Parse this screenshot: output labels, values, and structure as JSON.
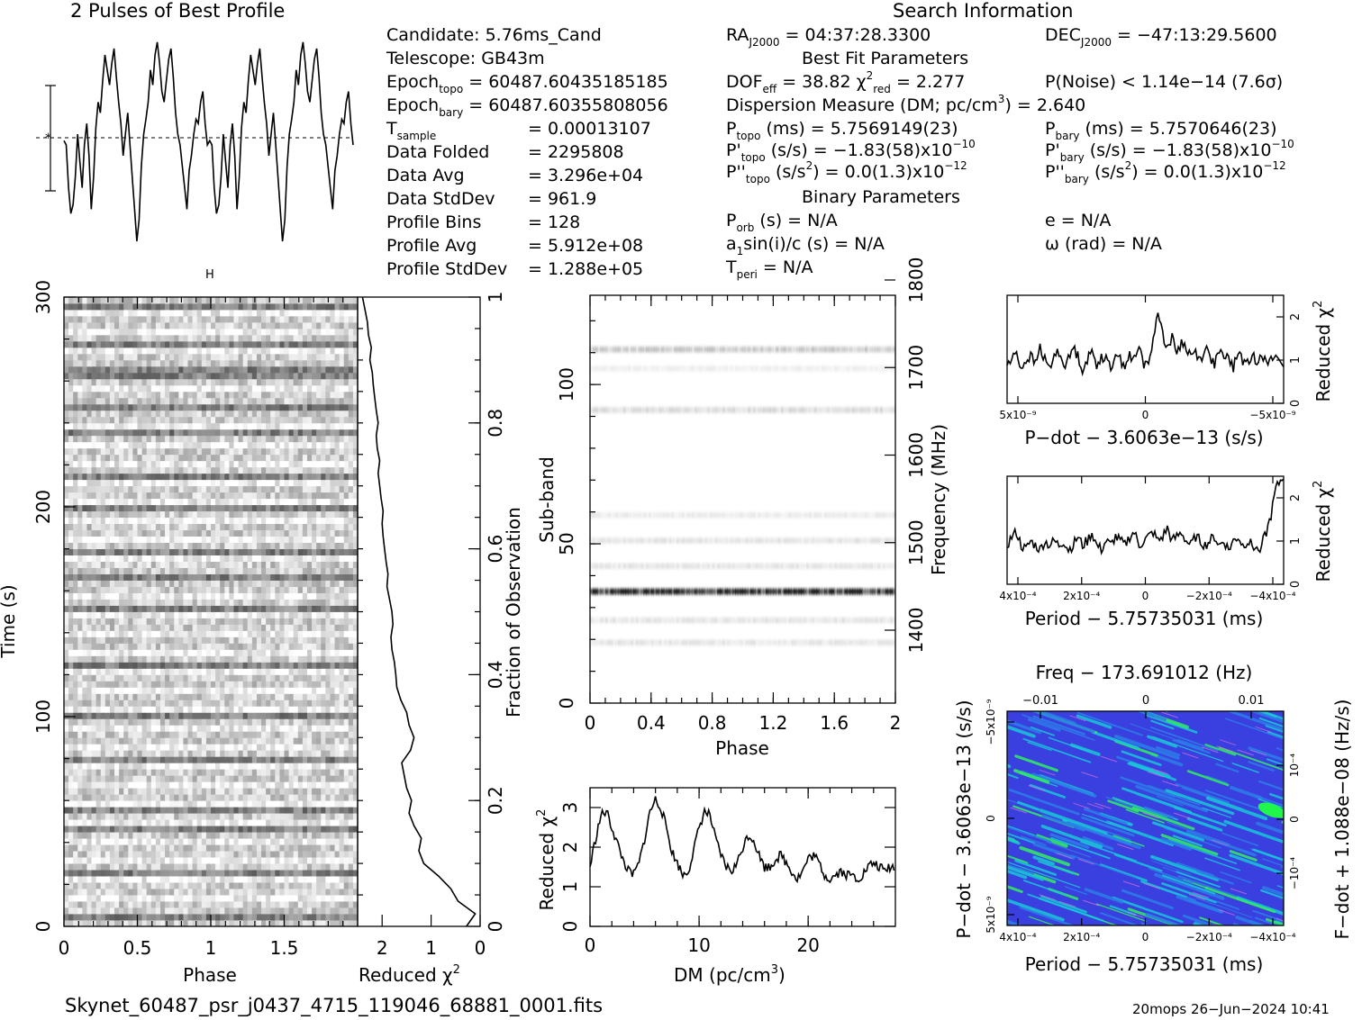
{
  "titles": {
    "profile": "2 Pulses of Best Profile",
    "search": "Search Information"
  },
  "info_left": [
    {
      "label": "Candidate:  5.76ms_Cand",
      "sub": "",
      "value": ""
    },
    {
      "label": "Telescope:  GB43m",
      "sub": "",
      "value": ""
    },
    {
      "label": "Epoch",
      "sub": "topo",
      "value": " = 60487.60435185185"
    },
    {
      "label": "Epoch",
      "sub": "bary",
      "value": " = 60487.60355808056"
    },
    {
      "label": "T",
      "sub": "sample",
      "value": "=  0.00013107"
    },
    {
      "label": "Data Folded",
      "sub": "",
      "value": "=  2295808"
    },
    {
      "label": "Data Avg",
      "sub": "",
      "value": "=  3.296e+04"
    },
    {
      "label": "Data StdDev",
      "sub": "",
      "value": "=  961.9"
    },
    {
      "label": "Profile Bins",
      "sub": "",
      "value": "=  128"
    },
    {
      "label": "Profile Avg",
      "sub": "",
      "value": "=  5.912e+08"
    },
    {
      "label": "Profile StdDev",
      "sub": "",
      "value": "=  1.288e+05"
    }
  ],
  "info_mid": {
    "ra": "04:37:28.3300",
    "dec": "−47:13:29.5600",
    "best_fit_title": "Best Fit Parameters",
    "dof": "38.82",
    "chi2_red": "2.277",
    "p_noise": "P(Noise) < 1.14e−14  (7.6σ)",
    "dm_line": "Dispersion Measure (DM; pc/cm",
    "dm_value": ") = 2.640",
    "p_topo": "5.7569149(23)",
    "p_bary": "5.7570646(23)",
    "pd_topo": "−1.83(58)x10",
    "pd_topo_exp": "−10",
    "pd_bary": "−1.83(58)x10",
    "pd_bary_exp": "−10",
    "pdd_topo": "0.0(1.3)x10",
    "pdd_topo_exp": "−12",
    "pdd_bary": "0.0(1.3)x10",
    "pdd_bary_exp": "−12",
    "binary_title": "Binary Parameters",
    "p_orb": "N/A",
    "a1sini": "N/A",
    "t_peri": "N/A",
    "e": "N/A",
    "omega": "N/A"
  },
  "footer": {
    "filename": "Skynet_60487_psr_j0437_4715_119046_68881_0001.fits",
    "stamp": "20mops 26−Jun−2024 10:41"
  },
  "chart_data": [
    {
      "type": "line",
      "name": "profile",
      "title": "2 Pulses of Best Profile",
      "x": "phase 0-2",
      "values": [
        0.52,
        0.5,
        0.3,
        0.18,
        0.22,
        0.35,
        0.55,
        0.42,
        0.3,
        0.5,
        0.6,
        0.45,
        0.2,
        0.35,
        0.58,
        0.7,
        0.65,
        0.8,
        0.92,
        0.85,
        0.78,
        0.88,
        0.95,
        0.82,
        0.7,
        0.6,
        0.45,
        0.55,
        0.65,
        0.5,
        0.35,
        0.2,
        0.05,
        0.15,
        0.4,
        0.55,
        0.62,
        0.7,
        0.85,
        0.78,
        0.92,
        0.98,
        0.88,
        0.75,
        0.7,
        0.8,
        0.9,
        0.95,
        0.82,
        0.65,
        0.55,
        0.5,
        0.4,
        0.3,
        0.2,
        0.38,
        0.45,
        0.55,
        0.62,
        0.6,
        0.7,
        0.75,
        0.6,
        0.5,
        0.52,
        0.5,
        0.3,
        0.18,
        0.22,
        0.35,
        0.55,
        0.42,
        0.3,
        0.5,
        0.6,
        0.45,
        0.2,
        0.35,
        0.58,
        0.7,
        0.65,
        0.8,
        0.92,
        0.85,
        0.78,
        0.88,
        0.95,
        0.82,
        0.7,
        0.6,
        0.45,
        0.55,
        0.65,
        0.5,
        0.35,
        0.2,
        0.05,
        0.15,
        0.4,
        0.55,
        0.62,
        0.7,
        0.85,
        0.78,
        0.92,
        0.98,
        0.88,
        0.75,
        0.7,
        0.8,
        0.9,
        0.95,
        0.82,
        0.65,
        0.55,
        0.5,
        0.4,
        0.3,
        0.2,
        0.38,
        0.45,
        0.55,
        0.62,
        0.6,
        0.7,
        0.75,
        0.6,
        0.5
      ]
    },
    {
      "type": "heatmap",
      "name": "time-phase",
      "xlabel": "Phase",
      "ylabel": "Time (s)",
      "xlim": [
        0,
        2
      ],
      "ylim": [
        0,
        300
      ],
      "x_ticks": [
        "0",
        "0.5",
        "1",
        "1.5"
      ],
      "y_ticks": [
        "0",
        "100",
        "200",
        "300"
      ],
      "dark_row_times_s": [
        3,
        23,
        44,
        54,
        77,
        100,
        122,
        150,
        165,
        177,
        197,
        212,
        233,
        246,
        260,
        265,
        276,
        294
      ],
      "right_axis_label": "Fraction of Observation",
      "right_ticks": [
        "0",
        "0.2",
        "0.4",
        "0.6",
        "0.8",
        "1"
      ]
    },
    {
      "type": "line",
      "name": "reduced-chi2-vs-time",
      "xlabel": "Reduced χ²",
      "x_ticks": [
        "2",
        "1",
        "0"
      ],
      "xlim": [
        2.5,
        0
      ],
      "fraction": [
        0.0,
        0.02,
        0.04,
        0.06,
        0.08,
        0.1,
        0.12,
        0.14,
        0.16,
        0.18,
        0.2,
        0.22,
        0.24,
        0.26,
        0.28,
        0.3,
        0.32,
        0.34,
        0.36,
        0.38,
        0.4,
        0.42,
        0.44,
        0.46,
        0.48,
        0.5,
        0.52,
        0.54,
        0.56,
        0.58,
        0.6,
        0.62,
        0.64,
        0.66,
        0.68,
        0.7,
        0.72,
        0.74,
        0.76,
        0.78,
        0.8,
        0.82,
        0.84,
        0.86,
        0.88,
        0.9,
        0.92,
        0.94,
        0.96,
        0.98,
        1.0
      ],
      "chi2": [
        0.28,
        0.1,
        0.45,
        0.6,
        0.85,
        1.15,
        1.25,
        1.2,
        1.35,
        1.45,
        1.4,
        1.5,
        1.55,
        1.6,
        1.42,
        1.35,
        1.45,
        1.5,
        1.62,
        1.7,
        1.72,
        1.75,
        1.8,
        1.82,
        1.78,
        1.8,
        1.85,
        1.9,
        1.88,
        1.92,
        1.95,
        1.98,
        2.0,
        1.98,
        2.02,
        2.05,
        2.08,
        2.05,
        2.1,
        2.12,
        2.08,
        2.12,
        2.15,
        2.18,
        2.2,
        2.25,
        2.22,
        2.28,
        2.3,
        2.35,
        2.4
      ]
    },
    {
      "type": "heatmap",
      "name": "subband-phase",
      "xlabel": "Phase",
      "ylabel": "Sub-band",
      "right_axis_label": "Frequency (MHz)",
      "xlim": [
        0,
        2
      ],
      "ylim": [
        0,
        128
      ],
      "x_ticks": [
        "0",
        "0.4",
        "0.8",
        "1.2",
        "1.6",
        "2"
      ],
      "y_ticks": [
        "0",
        "50",
        "100"
      ],
      "freq_ticks": [
        "1400",
        "1500",
        "1600",
        "1700",
        "1800"
      ],
      "bands": [
        {
          "subband": 19,
          "intensity": 0.1
        },
        {
          "subband": 26,
          "intensity": 0.1
        },
        {
          "subband": 35,
          "intensity": 0.85
        },
        {
          "subband": 43,
          "intensity": 0.1
        },
        {
          "subband": 51,
          "intensity": 0.1
        },
        {
          "subband": 59,
          "intensity": 0.08
        },
        {
          "subband": 92,
          "intensity": 0.14
        },
        {
          "subband": 105,
          "intensity": 0.06
        },
        {
          "subband": 111,
          "intensity": 0.2
        }
      ]
    },
    {
      "type": "line",
      "name": "dm-curve",
      "xlabel": "DM (pc/cm³)",
      "ylabel": "Reduced χ²",
      "xlim": [
        0,
        28
      ],
      "ylim": [
        0,
        3.5
      ],
      "x_ticks": [
        "0",
        "10",
        "20"
      ],
      "y_ticks": [
        "0",
        "1",
        "2",
        "3"
      ],
      "x": [
        0,
        0.5,
        1,
        1.5,
        2,
        2.5,
        3,
        3.5,
        4,
        4.5,
        5,
        5.5,
        6,
        6.5,
        7,
        7.5,
        8,
        8.5,
        9,
        9.5,
        10,
        10.5,
        11,
        11.5,
        12,
        12.5,
        13,
        13.5,
        14,
        14.5,
        15,
        15.5,
        16,
        16.5,
        17,
        17.5,
        18,
        18.5,
        19,
        19.5,
        20,
        20.5,
        21,
        21.5,
        22,
        22.5,
        23,
        23.5,
        24,
        24.5,
        25,
        25.5,
        26,
        26.5,
        27,
        27.5,
        28
      ],
      "y": [
        1.5,
        2.2,
        2.8,
        2.9,
        2.5,
        2.1,
        1.7,
        1.4,
        1.3,
        1.6,
        2.2,
        2.9,
        3.2,
        3.0,
        2.5,
        1.9,
        1.6,
        1.3,
        1.4,
        1.9,
        2.5,
        2.9,
        2.8,
        2.2,
        1.8,
        1.5,
        1.4,
        1.6,
        2.0,
        2.3,
        2.2,
        1.8,
        1.5,
        1.5,
        1.7,
        1.8,
        1.6,
        1.4,
        1.2,
        1.4,
        1.7,
        1.8,
        1.6,
        1.3,
        1.2,
        1.3,
        1.4,
        1.3,
        1.3,
        1.2,
        1.3,
        1.5,
        1.6,
        1.5,
        1.4,
        1.5,
        1.5
      ]
    },
    {
      "type": "line",
      "name": "pdot-curve",
      "xlabel": "P−dot − 3.6063e−13 (s/s)",
      "ylabel": "Reduced χ²",
      "ylim": [
        0,
        2.5
      ],
      "x_ticks": [
        "5x10⁻⁹",
        "0",
        "−5x10⁻⁹"
      ],
      "y_ticks": [
        "0",
        "1",
        "2"
      ],
      "y": [
        0.9,
        1.0,
        1.2,
        0.8,
        1.0,
        1.1,
        0.9,
        1.3,
        1.0,
        0.8,
        1.1,
        1.2,
        0.9,
        1.0,
        1.3,
        1.1,
        0.8,
        1.0,
        1.2,
        0.9,
        1.1,
        1.0,
        0.8,
        1.2,
        1.0,
        0.9,
        1.1,
        1.0,
        1.3,
        0.9,
        1.0,
        1.4,
        2.2,
        1.6,
        1.3,
        1.5,
        1.2,
        1.4,
        1.3,
        1.1,
        1.2,
        1.0,
        1.3,
        1.1,
        0.9,
        1.2,
        1.0,
        1.1,
        0.8,
        1.2,
        1.0,
        0.9,
        1.1,
        1.0,
        1.2,
        0.9,
        1.0,
        1.1,
        1.0,
        0.9
      ]
    },
    {
      "type": "line",
      "name": "period-curve",
      "xlabel": "Period − 5.75735031 (ms)",
      "ylabel": "Reduced χ²",
      "ylim": [
        0,
        2.5
      ],
      "x_ticks": [
        "4x10⁻⁴",
        "2x10⁻⁴",
        "0",
        "−2x10⁻⁴",
        "−4x10⁻⁴"
      ],
      "y_ticks": [
        "0",
        "1",
        "2"
      ],
      "y": [
        0.9,
        1.1,
        1.2,
        0.9,
        0.8,
        1.0,
        0.9,
        0.8,
        1.0,
        0.9,
        1.0,
        0.9,
        1.0,
        0.8,
        0.9,
        1.1,
        0.9,
        1.0,
        1.2,
        0.9,
        0.8,
        1.0,
        0.9,
        1.1,
        1.0,
        0.9,
        1.1,
        1.2,
        0.9,
        1.0,
        1.1,
        1.2,
        1.0,
        1.1,
        1.3,
        1.0,
        1.1,
        1.2,
        1.0,
        0.9,
        1.1,
        1.0,
        0.9,
        1.0,
        1.1,
        0.9,
        1.0,
        0.8,
        1.0,
        1.1,
        0.9,
        1.0,
        0.9,
        0.8,
        0.9,
        1.2,
        1.6,
        2.2,
        2.4,
        2.6
      ]
    },
    {
      "type": "heatmap",
      "name": "period-pdot-plane",
      "top_label": "Freq − 173.691012 (Hz)",
      "top_ticks": [
        "−0.01",
        "0",
        "0.01"
      ],
      "xlabel": "Period − 5.75735031 (ms)",
      "x_ticks": [
        "4x10⁻⁴",
        "2x10⁻⁴",
        "0",
        "−2x10⁻⁴",
        "−4x10⁻⁴"
      ],
      "ylabel": "P−dot − 3.6063e−13 (s/s)",
      "y_ticks": [
        "5x10⁻⁹",
        "0",
        "−5x10⁻⁹"
      ],
      "right_label": "F−dot + 1.088e−08 (Hz/s)",
      "right_ticks": [
        "10⁻⁴",
        "0",
        "−10⁻⁴"
      ],
      "colors": {
        "low": "#3a3fe0",
        "mid": "#18c8d8",
        "high": "#30f060",
        "peak": "#1ff84b"
      }
    }
  ]
}
